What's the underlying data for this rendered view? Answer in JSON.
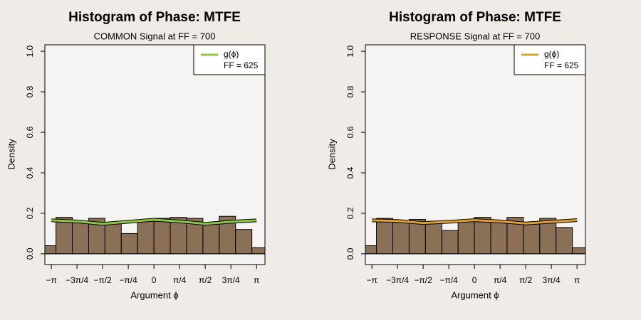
{
  "chart_data": [
    {
      "type": "histogram",
      "title": "Histogram of Phase: MTFE",
      "subtitle": "COMMON Signal at FF = 700",
      "xlabel": "Argument ϕ",
      "ylabel": "Density",
      "bins": [
        -3.5,
        -3,
        -2.5,
        -2,
        -1.5,
        -1,
        -0.5,
        0,
        0.5,
        1,
        1.5,
        2,
        2.5,
        3,
        3.5
      ],
      "values": [
        0.04,
        0.18,
        0.155,
        0.175,
        0.15,
        0.1,
        0.165,
        0.175,
        0.18,
        0.175,
        0.15,
        0.185,
        0.12,
        0.03
      ],
      "color": "#8b7058",
      "lines": [
        {
          "name": "g(ϕ)",
          "color": "#8dc63f",
          "x": [
            -3.1416,
            -2.3562,
            -1.5708,
            -0.7854,
            0,
            0.7854,
            1.5708,
            2.3562,
            3.1416
          ],
          "values": [
            0.165,
            0.16,
            0.148,
            0.158,
            0.168,
            0.16,
            0.148,
            0.158,
            0.165
          ]
        }
      ],
      "legend": "topright",
      "legend_note": "FF =  625",
      "xlim": [
        -3.34,
        3.4
      ],
      "ylim": [
        -0.053,
        1.032
      ],
      "xticks": [
        {
          "value": -3.1416,
          "label": "−π"
        },
        {
          "value": -2.3562,
          "label": "−3π/4"
        },
        {
          "value": -1.5708,
          "label": "−π/2"
        },
        {
          "value": -0.7854,
          "label": "−π/4"
        },
        0,
        {
          "value": 0.7854,
          "label": "π/4"
        },
        {
          "value": 1.5708,
          "label": "π/2"
        },
        {
          "value": 2.3562,
          "label": "3π/4"
        },
        {
          "value": 3.1416,
          "label": "π"
        }
      ],
      "yticks": [
        {
          "value": 0,
          "label": "0.0"
        },
        0.2,
        0.4,
        0.6,
        0.8,
        {
          "value": 1,
          "label": "1.0"
        }
      ]
    },
    {
      "type": "histogram",
      "title": "Histogram of Phase: MTFE",
      "subtitle": "RESPONSE Signal at FF = 700",
      "xlabel": "Argument ϕ",
      "ylabel": "Density",
      "bins": [
        -3.5,
        -3,
        -2.5,
        -2,
        -1.5,
        -1,
        -0.5,
        0,
        0.5,
        1,
        1.5,
        2,
        2.5,
        3,
        3.5
      ],
      "values": [
        0.04,
        0.175,
        0.155,
        0.17,
        0.16,
        0.115,
        0.165,
        0.18,
        0.155,
        0.18,
        0.15,
        0.175,
        0.13,
        0.03
      ],
      "color": "#8b7058",
      "lines": [
        {
          "name": "g(ϕ)",
          "color": "#e0a030",
          "x": [
            -3.1416,
            -2.3562,
            -1.5708,
            -0.7854,
            0,
            0.7854,
            1.5708,
            2.3562,
            3.1416
          ],
          "values": [
            0.165,
            0.162,
            0.152,
            0.158,
            0.166,
            0.16,
            0.15,
            0.158,
            0.166
          ]
        }
      ],
      "legend": "topright",
      "legend_note": "FF =  625",
      "xlim": [
        -3.34,
        3.4
      ],
      "ylim": [
        -0.053,
        1.032
      ],
      "xticks": [
        {
          "value": -3.1416,
          "label": "−π"
        },
        {
          "value": -2.3562,
          "label": "−3π/4"
        },
        {
          "value": -1.5708,
          "label": "−π/2"
        },
        {
          "value": -0.7854,
          "label": "−π/4"
        },
        0,
        {
          "value": 0.7854,
          "label": "π/4"
        },
        {
          "value": 1.5708,
          "label": "π/2"
        },
        {
          "value": 2.3562,
          "label": "3π/4"
        },
        {
          "value": 3.1416,
          "label": "π"
        }
      ],
      "yticks": [
        {
          "value": 0,
          "label": "0.0"
        },
        0.2,
        0.4,
        0.6,
        0.8,
        {
          "value": 1,
          "label": "1.0"
        }
      ]
    }
  ]
}
